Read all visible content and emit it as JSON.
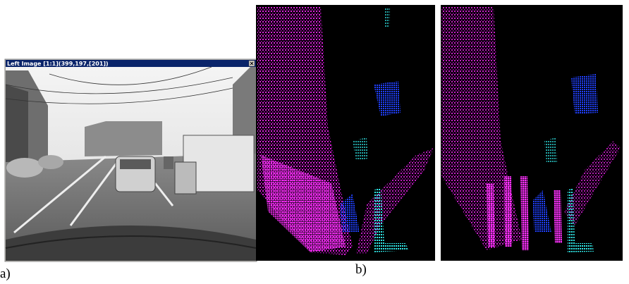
{
  "window": {
    "title": "Left Image [1:1](399,197,[201])"
  },
  "figure_labels": {
    "a": "a)",
    "b": "b)"
  }
}
